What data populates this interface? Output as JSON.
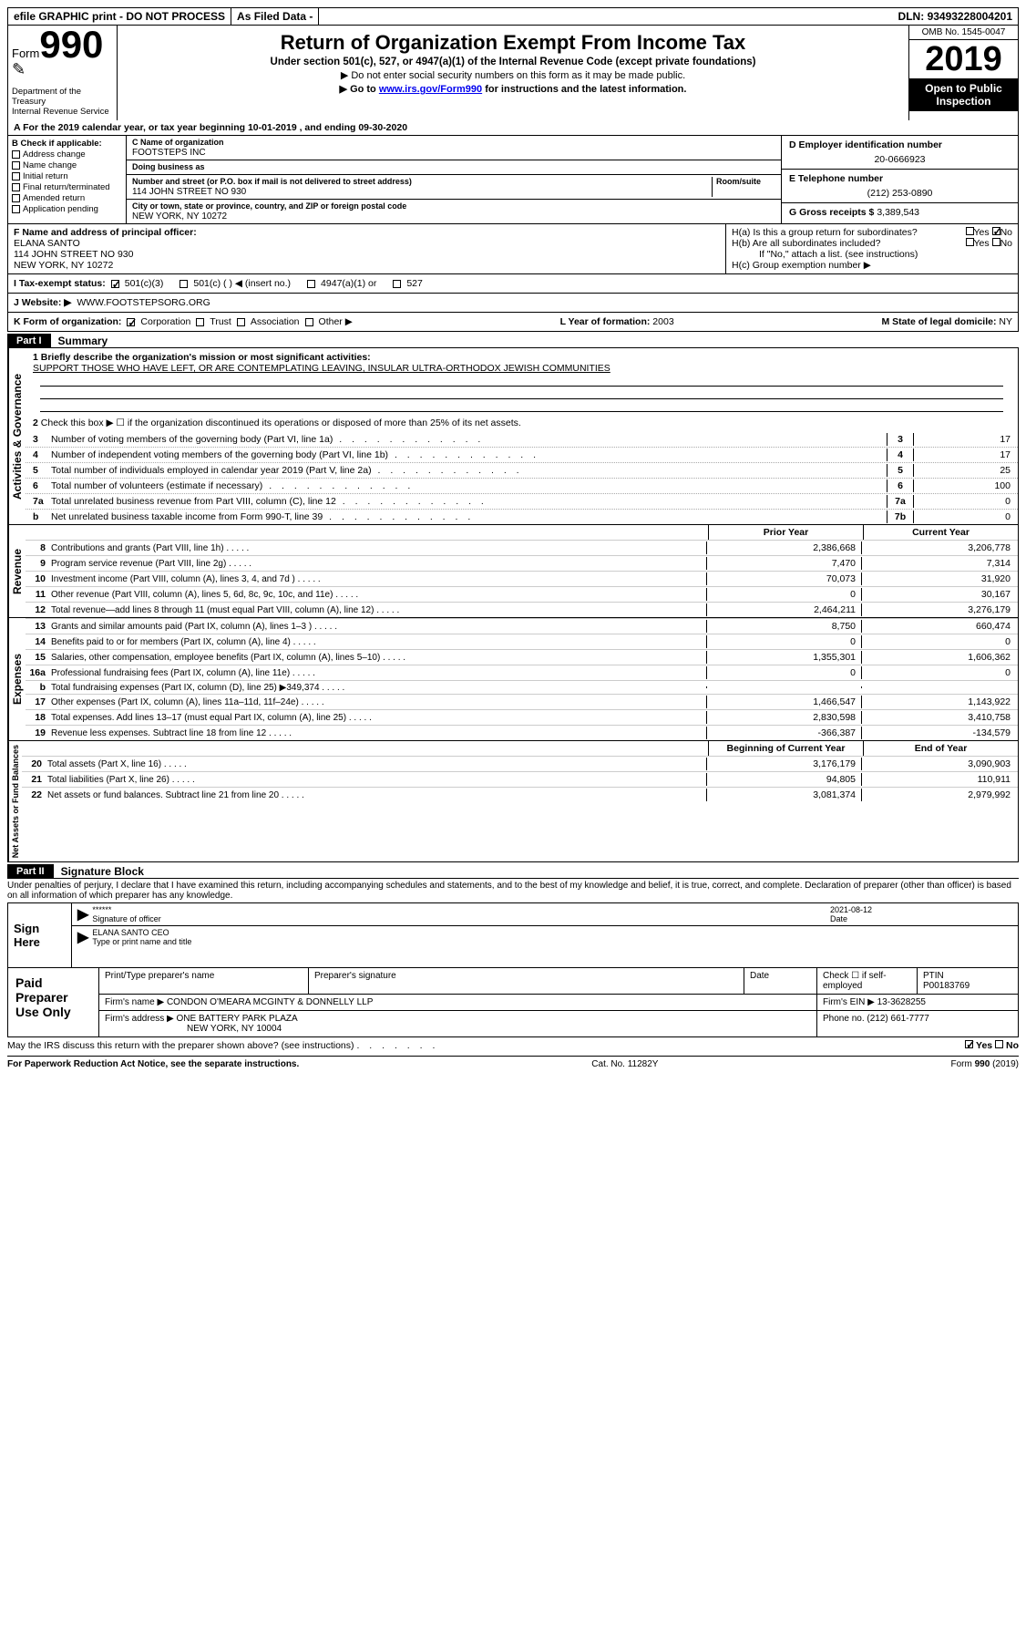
{
  "top": {
    "efile": "efile GRAPHIC print - DO NOT PROCESS",
    "asfiled": "As Filed Data -",
    "dln_lbl": "DLN:",
    "dln": "93493228004201"
  },
  "hdr": {
    "form": "Form",
    "num": "990",
    "dept": "Department of the Treasury\nInternal Revenue Service",
    "title": "Return of Organization Exempt From Income Tax",
    "sub": "Under section 501(c), 527, or 4947(a)(1) of the Internal Revenue Code (except private foundations)",
    "note1": "▶ Do not enter social security numbers on this form as it may be made public.",
    "note2_pre": "▶ Go to ",
    "note2_link": "www.irs.gov/Form990",
    "note2_post": " for instructions and the latest information.",
    "omb": "OMB No. 1545-0047",
    "year": "2019",
    "otp": "Open to Public Inspection"
  },
  "A": "A   For the 2019 calendar year, or tax year beginning 10-01-2019   , and ending 09-30-2020",
  "B": {
    "hdr": "B Check if applicable:",
    "items": [
      "Address change",
      "Name change",
      "Initial return",
      "Final return/terminated",
      "Amended return",
      "Application pending"
    ]
  },
  "C": {
    "name_lbl": "C Name of organization",
    "name": "FOOTSTEPS INC",
    "dba_lbl": "Doing business as",
    "dba": "",
    "street_lbl": "Number and street (or P.O. box if mail is not delivered to street address)",
    "room_lbl": "Room/suite",
    "street": "114 JOHN STREET NO 930",
    "city_lbl": "City or town, state or province, country, and ZIP or foreign postal code",
    "city": "NEW YORK, NY  10272"
  },
  "D": {
    "lbl": "D Employer identification number",
    "val": "20-0666923"
  },
  "E": {
    "lbl": "E Telephone number",
    "val": "(212) 253-0890"
  },
  "G": {
    "lbl": "G Gross receipts $",
    "val": "3,389,543"
  },
  "F": {
    "lbl": "F   Name and address of principal officer:",
    "name": "ELANA SANTO",
    "addr1": "114 JOHN STREET NO 930",
    "addr2": "NEW YORK, NY  10272"
  },
  "H": {
    "a": "H(a)  Is this a group return for subordinates?",
    "b": "H(b)  Are all subordinates included?",
    "bnote": "If \"No,\" attach a list. (see instructions)",
    "c": "H(c)  Group exemption number ▶",
    "yes": "Yes",
    "no": "No"
  },
  "I": {
    "lbl": "I   Tax-exempt status:",
    "o1": "501(c)(3)",
    "o2": "501(c) (  ) ◀ (insert no.)",
    "o3": "4947(a)(1) or",
    "o4": "527"
  },
  "J": {
    "lbl": "J   Website: ▶",
    "val": "WWW.FOOTSTEPSORG.ORG"
  },
  "K": {
    "lbl": "K Form of organization:",
    "o1": "Corporation",
    "o2": "Trust",
    "o3": "Association",
    "o4": "Other ▶"
  },
  "L": {
    "lbl": "L Year of formation:",
    "val": "2003"
  },
  "M": {
    "lbl": "M State of legal domicile:",
    "val": "NY"
  },
  "part1": {
    "tag": "Part I",
    "title": "Summary"
  },
  "mission": {
    "q1": "1 Briefly describe the organization's mission or most significant activities:",
    "text": "SUPPORT THOSE WHO HAVE LEFT, OR ARE CONTEMPLATING LEAVING, INSULAR ULTRA-ORTHODOX JEWISH COMMUNITIES",
    "q2": "Check this box ▶ ☐ if the organization discontinued its operations or disposed of more than 25% of its net assets."
  },
  "gov": [
    {
      "n": "3",
      "t": "Number of voting members of the governing body (Part VI, line 1a)",
      "b": "3",
      "v": "17"
    },
    {
      "n": "4",
      "t": "Number of independent voting members of the governing body (Part VI, line 1b)",
      "b": "4",
      "v": "17"
    },
    {
      "n": "5",
      "t": "Total number of individuals employed in calendar year 2019 (Part V, line 2a)",
      "b": "5",
      "v": "25"
    },
    {
      "n": "6",
      "t": "Total number of volunteers (estimate if necessary)",
      "b": "6",
      "v": "100"
    },
    {
      "n": "7a",
      "t": "Total unrelated business revenue from Part VIII, column (C), line 12",
      "b": "7a",
      "v": "0"
    },
    {
      "n": "b",
      "t": "Net unrelated business taxable income from Form 990-T, line 39",
      "b": "7b",
      "v": "0"
    }
  ],
  "colhdr": {
    "py": "Prior Year",
    "cy": "Current Year",
    "boy": "Beginning of Current Year",
    "eoy": "End of Year"
  },
  "rev": [
    {
      "n": "8",
      "t": "Contributions and grants (Part VIII, line 1h)",
      "p": "2,386,668",
      "c": "3,206,778"
    },
    {
      "n": "9",
      "t": "Program service revenue (Part VIII, line 2g)",
      "p": "7,470",
      "c": "7,314"
    },
    {
      "n": "10",
      "t": "Investment income (Part VIII, column (A), lines 3, 4, and 7d )",
      "p": "70,073",
      "c": "31,920"
    },
    {
      "n": "11",
      "t": "Other revenue (Part VIII, column (A), lines 5, 6d, 8c, 9c, 10c, and 11e)",
      "p": "0",
      "c": "30,167"
    },
    {
      "n": "12",
      "t": "Total revenue—add lines 8 through 11 (must equal Part VIII, column (A), line 12)",
      "p": "2,464,211",
      "c": "3,276,179"
    }
  ],
  "exp": [
    {
      "n": "13",
      "t": "Grants and similar amounts paid (Part IX, column (A), lines 1–3 )",
      "p": "8,750",
      "c": "660,474"
    },
    {
      "n": "14",
      "t": "Benefits paid to or for members (Part IX, column (A), line 4)",
      "p": "0",
      "c": "0"
    },
    {
      "n": "15",
      "t": "Salaries, other compensation, employee benefits (Part IX, column (A), lines 5–10)",
      "p": "1,355,301",
      "c": "1,606,362"
    },
    {
      "n": "16a",
      "t": "Professional fundraising fees (Part IX, column (A), line 11e)",
      "p": "0",
      "c": "0"
    },
    {
      "n": "b",
      "t": "Total fundraising expenses (Part IX, column (D), line 25) ▶349,374",
      "p": "",
      "c": ""
    },
    {
      "n": "17",
      "t": "Other expenses (Part IX, column (A), lines 11a–11d, 11f–24e)",
      "p": "1,466,547",
      "c": "1,143,922"
    },
    {
      "n": "18",
      "t": "Total expenses. Add lines 13–17 (must equal Part IX, column (A), line 25)",
      "p": "2,830,598",
      "c": "3,410,758"
    },
    {
      "n": "19",
      "t": "Revenue less expenses. Subtract line 18 from line 12",
      "p": "-366,387",
      "c": "-134,579"
    }
  ],
  "na": [
    {
      "n": "20",
      "t": "Total assets (Part X, line 16)",
      "p": "3,176,179",
      "c": "3,090,903"
    },
    {
      "n": "21",
      "t": "Total liabilities (Part X, line 26)",
      "p": "94,805",
      "c": "110,911"
    },
    {
      "n": "22",
      "t": "Net assets or fund balances. Subtract line 21 from line 20",
      "p": "3,081,374",
      "c": "2,979,992"
    }
  ],
  "vlabels": {
    "gov": "Activities & Governance",
    "rev": "Revenue",
    "exp": "Expenses",
    "na": "Net Assets or Fund Balances"
  },
  "part2": {
    "tag": "Part II",
    "title": "Signature Block"
  },
  "perjury": "Under penalties of perjury, I declare that I have examined this return, including accompanying schedules and statements, and to the best of my knowledge and belief, it is true, correct, and complete. Declaration of preparer (other than officer) is based on all information of which preparer has any knowledge.",
  "sign": {
    "here": "Sign Here",
    "stars": "******",
    "sig_lbl": "Signature of officer",
    "date": "2021-08-12",
    "date_lbl": "Date",
    "name": "ELANA SANTO CEO",
    "name_lbl": "Type or print name and title"
  },
  "paid": {
    "lbl": "Paid Preparer Use Only",
    "h1": "Print/Type preparer's name",
    "h2": "Preparer's signature",
    "h3": "Date",
    "h4a": "Check ☐ if self-employed",
    "h4b": "PTIN",
    "ptin": "P00183769",
    "firm_lbl": "Firm's name   ▶",
    "firm": "CONDON O'MEARA MCGINTY & DONNELLY LLP",
    "ein_lbl": "Firm's EIN ▶",
    "ein": "13-3628255",
    "addr_lbl": "Firm's address ▶",
    "addr1": "ONE BATTERY PARK PLAZA",
    "addr2": "NEW YORK, NY  10004",
    "phone_lbl": "Phone no.",
    "phone": "(212) 661-7777"
  },
  "discuss": {
    "q": "May the IRS discuss this return with the preparer shown above? (see instructions)",
    "yes": "Yes",
    "no": "No"
  },
  "foot": {
    "l": "For Paperwork Reduction Act Notice, see the separate instructions.",
    "m": "Cat. No. 11282Y",
    "r": "Form 990 (2019)"
  }
}
